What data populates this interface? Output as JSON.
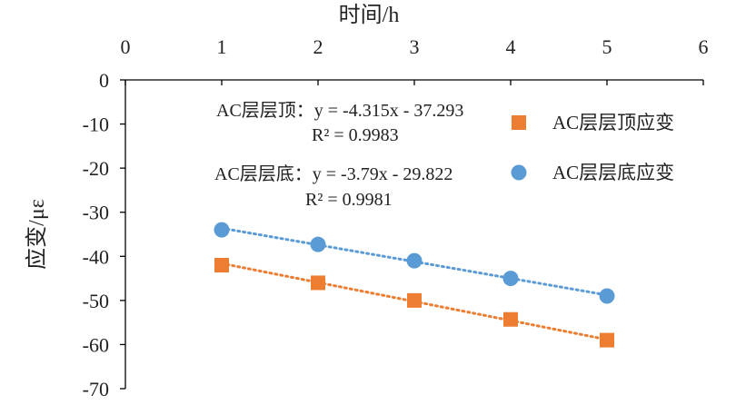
{
  "chart_data": {
    "type": "scatter",
    "xlabel": "时间/h",
    "ylabel": "应变/με",
    "xlim": [
      0,
      6
    ],
    "ylim": [
      -70,
      0
    ],
    "x_ticks": [
      0,
      1,
      2,
      3,
      4,
      5,
      6
    ],
    "y_ticks": [
      0,
      -10,
      -20,
      -30,
      -40,
      -50,
      -60,
      -70
    ],
    "x_axis_position": "top",
    "grid": false,
    "legend_position": "right",
    "series": [
      {
        "name": "AC层层顶应变",
        "marker": "square",
        "color": "#ED7D31",
        "x": [
          1,
          2,
          3,
          4,
          5
        ],
        "y": [
          -42,
          -46,
          -50,
          -54.3,
          -59
        ],
        "trendline": {
          "equation": "AC层层顶：y = -4.315x - 37.293",
          "r2": "R² = 0.9983",
          "slope": -4.315,
          "intercept": -37.293
        }
      },
      {
        "name": "AC层层底应变",
        "marker": "circle",
        "color": "#5B9BD5",
        "x": [
          1,
          2,
          3,
          4,
          5
        ],
        "y": [
          -34,
          -37.3,
          -41,
          -45,
          -49
        ],
        "trendline": {
          "equation": "AC层层底：y = -3.79x - 29.822",
          "r2": "R² = 0.9981",
          "slope": -3.79,
          "intercept": -29.822
        }
      }
    ]
  }
}
